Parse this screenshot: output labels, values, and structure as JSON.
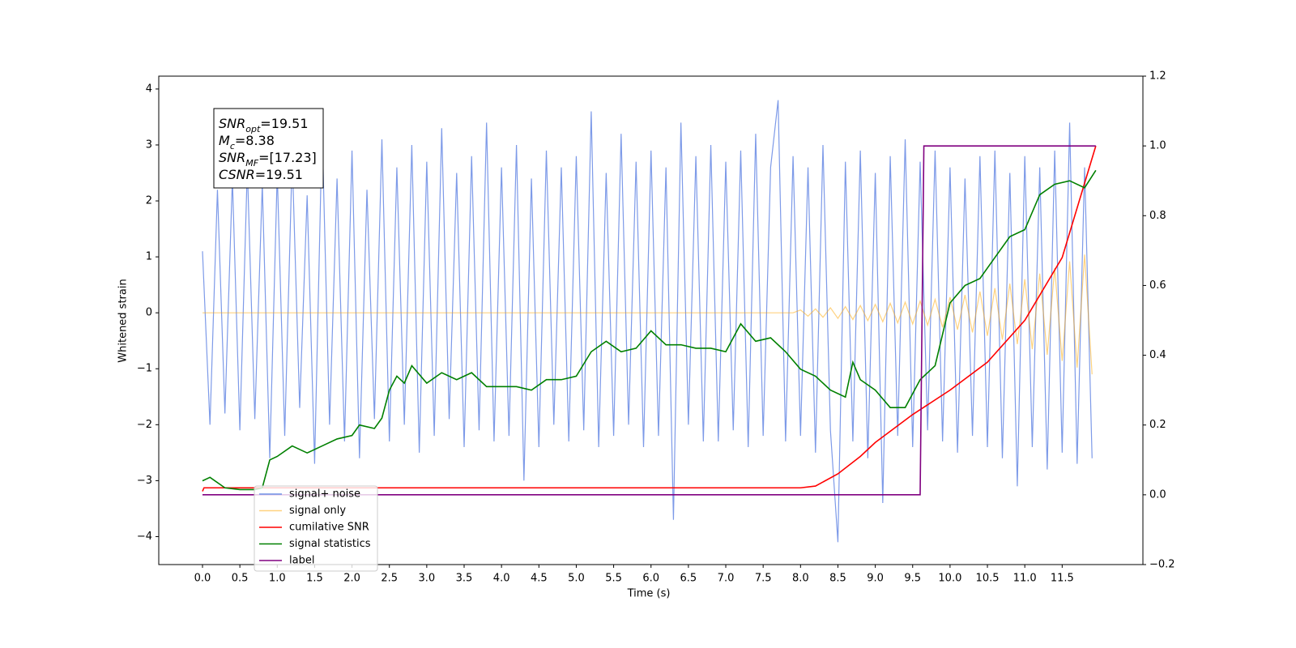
{
  "chart_data": {
    "type": "line",
    "xlabel": "Time (s)",
    "ylabel": "Whitened strain",
    "xlim": [
      -0.585,
      12.58
    ],
    "ylim": [
      -4.5,
      4.23
    ],
    "y2lim": [
      -0.2,
      1.2
    ],
    "xticks": [
      {
        "value": 0,
        "label": "0.0"
      },
      {
        "value": 0.5,
        "label": "0.5"
      },
      {
        "value": 1,
        "label": "1.0"
      },
      {
        "value": 1.5,
        "label": "1.5"
      },
      {
        "value": 2,
        "label": "2.0"
      },
      {
        "value": 2.5,
        "label": "2.5"
      },
      {
        "value": 3,
        "label": "3.0"
      },
      {
        "value": 3.5,
        "label": "3.5"
      },
      {
        "value": 4,
        "label": "4.0"
      },
      {
        "value": 4.5,
        "label": "4.5"
      },
      {
        "value": 5,
        "label": "5.0"
      },
      {
        "value": 5.5,
        "label": "5.5"
      },
      {
        "value": 6,
        "label": "6.0"
      },
      {
        "value": 6.5,
        "label": "6.5"
      },
      {
        "value": 7,
        "label": "7.0"
      },
      {
        "value": 7.5,
        "label": "7.5"
      },
      {
        "value": 8,
        "label": "8.0"
      },
      {
        "value": 8.5,
        "label": "8.5"
      },
      {
        "value": 9,
        "label": "9.0"
      },
      {
        "value": 9.5,
        "label": "9.5"
      },
      {
        "value": 10,
        "label": "10.0"
      },
      {
        "value": 10.5,
        "label": "10.5"
      },
      {
        "value": 11,
        "label": "11.0"
      },
      {
        "value": 11.5,
        "label": "11.5"
      }
    ],
    "yticks": [
      {
        "value": -4,
        "label": "−4"
      },
      {
        "value": -3,
        "label": "−3"
      },
      {
        "value": -2,
        "label": "−2"
      },
      {
        "value": -1,
        "label": "−1"
      },
      0,
      1,
      2,
      3,
      4
    ],
    "y2ticks": [
      {
        "value": -0.2,
        "label": "−0.2"
      },
      {
        "value": 0,
        "label": "0.0"
      },
      {
        "value": 0.2,
        "label": "0.2"
      },
      {
        "value": 0.4,
        "label": "0.4"
      },
      {
        "value": 0.6,
        "label": "0.6"
      },
      {
        "value": 0.8,
        "label": "0.8"
      },
      {
        "value": 1,
        "label": "1.0"
      },
      {
        "value": 1.2,
        "label": "1.2"
      }
    ],
    "x": [
      0,
      0.1,
      0.2,
      0.3,
      0.4,
      0.5,
      0.6,
      0.7,
      0.8,
      0.9,
      1,
      1.1,
      1.2,
      1.3,
      1.4,
      1.5,
      1.6,
      1.7,
      1.8,
      1.9,
      2,
      2.1,
      2.2,
      2.3,
      2.4,
      2.5,
      2.6,
      2.7,
      2.8,
      2.9,
      3,
      3.1,
      3.2,
      3.3,
      3.4,
      3.5,
      3.6,
      3.7,
      3.8,
      3.9,
      4,
      4.1,
      4.2,
      4.3,
      4.4,
      4.5,
      4.6,
      4.7,
      4.8,
      4.9,
      5,
      5.1,
      5.2,
      5.3,
      5.4,
      5.5,
      5.6,
      5.7,
      5.8,
      5.9,
      6,
      6.1,
      6.2,
      6.3,
      6.4,
      6.5,
      6.6,
      6.7,
      6.8,
      6.9,
      7,
      7.1,
      7.2,
      7.3,
      7.4,
      7.5,
      7.6,
      7.7,
      7.8,
      7.9,
      8,
      8.1,
      8.2,
      8.3,
      8.4,
      8.5,
      8.6,
      8.7,
      8.8,
      8.9,
      9,
      9.1,
      9.2,
      9.3,
      9.4,
      9.5,
      9.6,
      9.7,
      9.8,
      9.9,
      10,
      10.1,
      10.2,
      10.3,
      10.4,
      10.5,
      10.6,
      10.7,
      10.8,
      10.9,
      11,
      11.1,
      11.2,
      11.3,
      11.4,
      11.5,
      11.6,
      11.7,
      11.8,
      11.9
    ],
    "series": [
      {
        "name": "signal+ noise",
        "color": "#6f8fe6",
        "values": [
          1.1,
          -2.0,
          2.2,
          -1.8,
          2.4,
          -2.1,
          2.6,
          -1.9,
          2.3,
          -2.6,
          2.5,
          -2.2,
          2.8,
          -1.7,
          2.1,
          -2.7,
          3.3,
          -2.0,
          2.4,
          -2.3,
          2.9,
          -2.6,
          2.2,
          -1.9,
          3.1,
          -2.3,
          2.6,
          -2.0,
          3.0,
          -2.5,
          2.7,
          -2.2,
          3.3,
          -1.9,
          2.5,
          -2.4,
          2.8,
          -2.1,
          3.4,
          -2.3,
          2.6,
          -2.2,
          3.0,
          -3.0,
          2.4,
          -2.4,
          2.9,
          -2.0,
          2.6,
          -2.3,
          2.8,
          -2.1,
          3.6,
          -2.4,
          2.5,
          -2.2,
          3.2,
          -2.0,
          2.7,
          -2.4,
          2.9,
          -2.2,
          2.6,
          -3.7,
          3.4,
          -2.0,
          2.8,
          -2.3,
          3.0,
          -2.3,
          2.7,
          -2.1,
          2.9,
          -2.4,
          3.2,
          -2.2,
          2.6,
          3.8,
          -2.3,
          2.8,
          -2.2,
          2.6,
          -2.5,
          3.0,
          -2.1,
          -4.1,
          2.7,
          -2.3,
          2.9,
          -2.6,
          2.5,
          -3.4,
          2.8,
          -2.2,
          3.1,
          -2.4,
          2.7,
          -2.1,
          2.9,
          -2.3,
          2.6,
          -2.5,
          2.4,
          -2.2,
          2.8,
          -2.4,
          2.9,
          -2.6,
          2.5,
          -3.1,
          2.8,
          -2.4,
          2.6,
          -2.8,
          2.9,
          -2.5,
          3.4,
          -2.7,
          2.6,
          -2.6
        ]
      },
      {
        "name": "signal only",
        "color": "#ffa500",
        "values": [
          0,
          0,
          0,
          0,
          0,
          0,
          0,
          0,
          0,
          0,
          0,
          0,
          0,
          0,
          0,
          0,
          0,
          0,
          0,
          0,
          0,
          0,
          0,
          0,
          0,
          0,
          0,
          0,
          0,
          0,
          0,
          0,
          0,
          0,
          0,
          0,
          0,
          0,
          0,
          0,
          0,
          0,
          0,
          0,
          0,
          0,
          0,
          0,
          0,
          0,
          0,
          0,
          0,
          0,
          0,
          0,
          0,
          0,
          0,
          0,
          0,
          0,
          0,
          0,
          0,
          0,
          0,
          0,
          0,
          0,
          0,
          0,
          0,
          0,
          0,
          0,
          0,
          0,
          0,
          0,
          0.05,
          -0.06,
          0.07,
          -0.08,
          0.09,
          -0.1,
          0.11,
          -0.12,
          0.13,
          -0.14,
          0.15,
          -0.16,
          0.17,
          -0.18,
          0.19,
          -0.2,
          0.21,
          -0.22,
          0.24,
          -0.26,
          0.28,
          -0.3,
          0.32,
          -0.35,
          0.38,
          -0.41,
          0.44,
          -0.48,
          0.52,
          -0.56,
          0.6,
          -0.65,
          0.7,
          -0.75,
          0.8,
          -0.86,
          0.92,
          -0.98,
          1.04,
          -1.1
        ]
      },
      {
        "name": "cumilative SNR",
        "color": "#ff0000",
        "axis": "y2",
        "x": [
          0,
          0.02,
          8.0,
          8.2,
          8.5,
          8.8,
          9.0,
          9.5,
          10.0,
          10.5,
          11.0,
          11.5,
          11.95
        ],
        "values": [
          0.01,
          0.02,
          0.02,
          0.025,
          0.06,
          0.11,
          0.15,
          0.23,
          0.3,
          0.38,
          0.5,
          0.68,
          1.0
        ]
      },
      {
        "name": "signal statistics",
        "color": "#008000",
        "axis": "y2",
        "x": [
          0,
          0.1,
          0.3,
          0.5,
          0.7,
          0.8,
          0.9,
          1.0,
          1.2,
          1.4,
          1.6,
          1.8,
          2.0,
          2.1,
          2.3,
          2.4,
          2.5,
          2.6,
          2.7,
          2.8,
          3.0,
          3.2,
          3.4,
          3.6,
          3.8,
          4.0,
          4.2,
          4.4,
          4.6,
          4.8,
          5.0,
          5.2,
          5.4,
          5.6,
          5.8,
          6.0,
          6.2,
          6.4,
          6.6,
          6.8,
          7.0,
          7.2,
          7.4,
          7.6,
          7.8,
          8.0,
          8.2,
          8.4,
          8.6,
          8.7,
          8.8,
          9.0,
          9.2,
          9.4,
          9.6,
          9.8,
          10.0,
          10.2,
          10.4,
          10.6,
          10.8,
          11.0,
          11.2,
          11.4,
          11.6,
          11.8,
          11.95
        ],
        "values": [
          0.04,
          0.05,
          0.02,
          0.015,
          0.015,
          0.02,
          0.1,
          0.11,
          0.14,
          0.12,
          0.14,
          0.16,
          0.17,
          0.2,
          0.19,
          0.22,
          0.3,
          0.34,
          0.32,
          0.37,
          0.32,
          0.35,
          0.33,
          0.35,
          0.31,
          0.31,
          0.31,
          0.3,
          0.33,
          0.33,
          0.34,
          0.41,
          0.44,
          0.41,
          0.42,
          0.47,
          0.43,
          0.43,
          0.42,
          0.42,
          0.41,
          0.49,
          0.44,
          0.45,
          0.41,
          0.36,
          0.34,
          0.3,
          0.28,
          0.38,
          0.33,
          0.3,
          0.25,
          0.25,
          0.33,
          0.37,
          0.55,
          0.6,
          0.62,
          0.68,
          0.74,
          0.76,
          0.86,
          0.89,
          0.9,
          0.88,
          0.93
        ]
      },
      {
        "name": "label",
        "color": "#800080",
        "axis": "y2",
        "x": [
          0,
          9.6,
          9.65,
          11.95
        ],
        "values": [
          0,
          0,
          1,
          1
        ]
      }
    ],
    "annotations": [
      {
        "name": "SNR",
        "sub": "opt",
        "text": "=19.51"
      },
      {
        "name": "M",
        "sub": "c",
        "text": "=8.38"
      },
      {
        "name": "SNR",
        "sub": "MF",
        "text": "=[17.23]"
      },
      {
        "name": "CSNR",
        "sub": "",
        "text": "=19.51"
      }
    ]
  }
}
